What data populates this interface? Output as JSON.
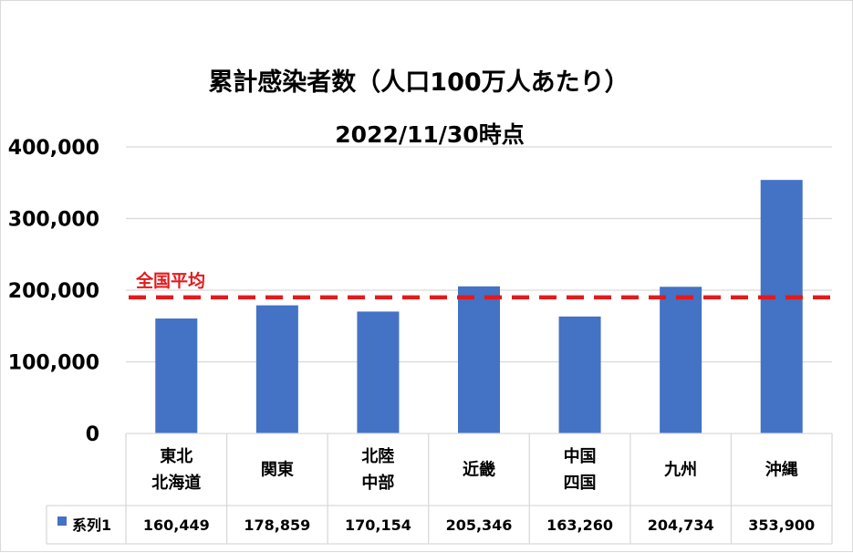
{
  "colors": {
    "bar": "#4472c4",
    "average_line": "#e31a1c",
    "grid": "#d9d9d9"
  },
  "chart_data": {
    "type": "bar",
    "title": "累計感染者数（人口100万人あたり）",
    "subtitle": "2022/11/30時点",
    "categories": [
      [
        "東北",
        "北海道"
      ],
      [
        "関東"
      ],
      [
        "北陸",
        "中部"
      ],
      [
        "近畿"
      ],
      [
        "中国",
        "四国"
      ],
      [
        "九州"
      ],
      [
        "沖縄"
      ]
    ],
    "series": [
      {
        "name": "系列1",
        "values": [
          160449,
          178859,
          170154,
          205346,
          163260,
          204734,
          353900
        ]
      }
    ],
    "value_labels": [
      "160,449",
      "178,859",
      "170,154",
      "205,346",
      "163,260",
      "204,734",
      "353,900"
    ],
    "yticks": [
      0,
      100000,
      200000,
      300000,
      400000
    ],
    "ytick_labels": [
      "0",
      "100,000",
      "200,000",
      "300,000",
      "400,000"
    ],
    "ylim": [
      0,
      400000
    ],
    "grid": true,
    "legend": "data-table",
    "reference_line": {
      "label": "全国平均",
      "value": 190000
    }
  }
}
